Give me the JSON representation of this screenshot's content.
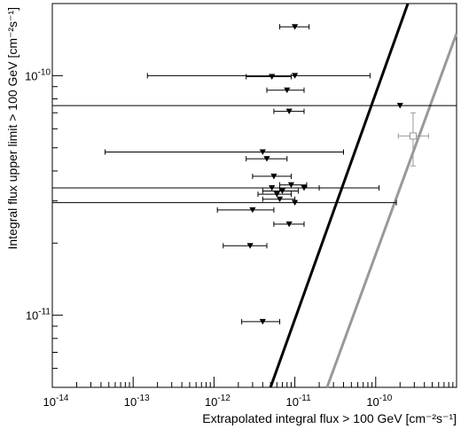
{
  "chart_data": {
    "type": "scatter",
    "title": "",
    "xlabel": "Extrapolated integral flux > 100 GeV [cm⁻²s⁻¹]",
    "ylabel": "Integral flux upper limit > 100 GeV [cm⁻²s⁻¹]",
    "x_scale": "log",
    "y_scale": "log",
    "xlim": [
      1e-14,
      1e-09
    ],
    "ylim": [
      5e-12,
      2e-10
    ],
    "grid": false,
    "x_ticks": [
      {
        "exp": "-14",
        "value": 1e-14
      },
      {
        "exp": "-13",
        "value": 1e-13
      },
      {
        "exp": "-12",
        "value": 1e-12
      },
      {
        "exp": "-11",
        "value": 1e-11
      },
      {
        "exp": "-10",
        "value": 1e-10
      }
    ],
    "y_ticks": [
      {
        "exp": "-11",
        "value": 1e-11
      },
      {
        "exp": "-10",
        "value": 1e-10
      }
    ],
    "tick_base": "10",
    "series": [
      {
        "marker": "filled-down-triangle",
        "color": "#000000",
        "points": [
          {
            "x": 1e-11,
            "y": 1.6e-10,
            "xerr": [
              6.5e-12,
              1.5e-11
            ]
          },
          {
            "x": 5.2e-12,
            "y": 9.9e-11,
            "xerr": [
              2.5e-12,
              9e-12
            ]
          },
          {
            "x": 1e-11,
            "y": 1e-10,
            "xerr": [
              1.5e-13,
              8.5e-11
            ]
          },
          {
            "x": 8e-12,
            "y": 8.7e-11,
            "xerr": [
              4.5e-12,
              1.3e-11
            ]
          },
          {
            "x": 2e-10,
            "y": 7.5e-11,
            "xerr": [
              1e-14,
              1e-09
            ]
          },
          {
            "x": 8.5e-12,
            "y": 7.1e-11,
            "xerr": [
              5.5e-12,
              1.3e-11
            ]
          },
          {
            "x": 4e-12,
            "y": 4.8e-11,
            "xerr": [
              4.5e-14,
              4e-11
            ]
          },
          {
            "x": 4.5e-12,
            "y": 4.5e-11,
            "xerr": [
              2.5e-12,
              8e-12
            ]
          },
          {
            "x": 5.5e-12,
            "y": 3.8e-11,
            "xerr": [
              3e-12,
              9e-12
            ]
          },
          {
            "x": 9e-12,
            "y": 3.5e-11,
            "xerr": [
              6.5e-12,
              1.4e-11
            ]
          },
          {
            "x": 5.2e-12,
            "y": 3.4e-11,
            "xerr": [
              1e-14,
              1.1e-10
            ]
          },
          {
            "x": 1.3e-11,
            "y": 3.4e-11,
            "xerr": [
              6.5e-12,
              2e-11
            ]
          },
          {
            "x": 7e-12,
            "y": 3.3e-11,
            "xerr": [
              4e-12,
              1.1e-11
            ]
          },
          {
            "x": 6e-12,
            "y": 3.2e-11,
            "xerr": [
              3.5e-12,
              9e-12
            ]
          },
          {
            "x": 6.5e-12,
            "y": 3.05e-11,
            "xerr": [
              4e-12,
              1e-11
            ]
          },
          {
            "x": 1e-11,
            "y": 2.95e-11,
            "xerr": [
              1e-14,
              1.8e-10
            ]
          },
          {
            "x": 3e-12,
            "y": 2.75e-11,
            "xerr": [
              1.1e-12,
              5.5e-12
            ]
          },
          {
            "x": 8.5e-12,
            "y": 2.4e-11,
            "xerr": [
              5.5e-12,
              1.3e-11
            ]
          },
          {
            "x": 2.8e-12,
            "y": 1.95e-11,
            "xerr": [
              1.3e-12,
              4.5e-12
            ]
          },
          {
            "x": 4e-12,
            "y": 9.4e-12,
            "xerr": [
              2.2e-12,
              6.5e-12
            ]
          }
        ]
      },
      {
        "marker": "open-square",
        "color": "#999999",
        "points": [
          {
            "x": 2.9e-10,
            "y": 5.6e-11,
            "xerr": [
              1.9e-10,
              4.5e-10
            ],
            "yerr": [
              4.2e-11,
              7e-11
            ]
          }
        ]
      }
    ],
    "lines": [
      {
        "color": "#000000",
        "points": [
          [
            5e-12,
            5e-12
          ],
          [
            2.5e-10,
            2e-10
          ]
        ]
      },
      {
        "color": "#999999",
        "points": [
          [
            2.5e-11,
            5e-12
          ],
          [
            1e-09,
            1.5e-10
          ]
        ]
      }
    ]
  }
}
